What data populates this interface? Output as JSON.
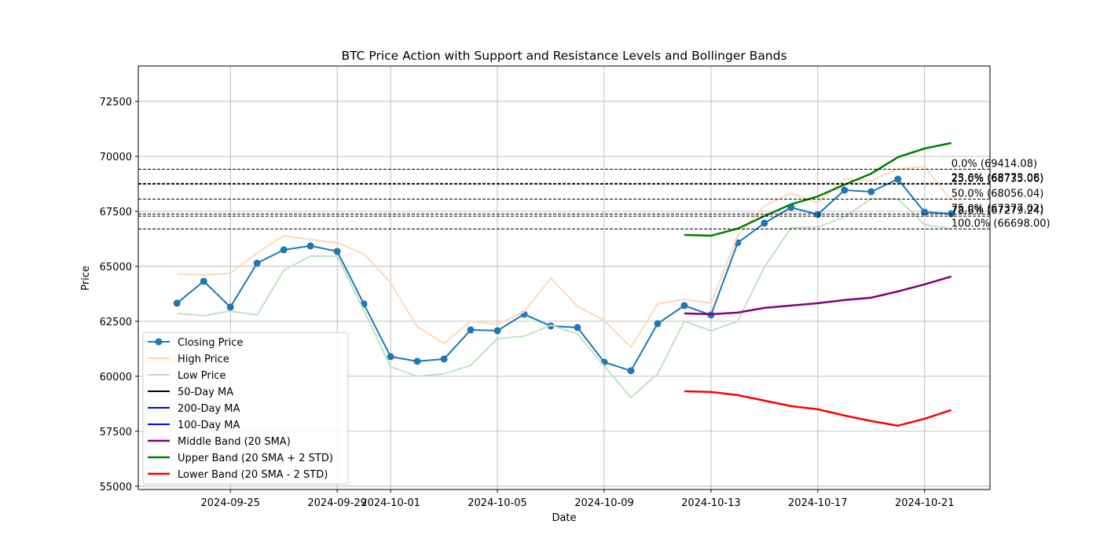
{
  "chart_data": {
    "type": "line",
    "title": "BTC Price Action with Support and Resistance Levels and Bollinger Bands",
    "xlabel": "Date",
    "ylabel": "Price",
    "x": [
      "2024-09-23",
      "2024-09-24",
      "2024-09-25",
      "2024-09-26",
      "2024-09-27",
      "2024-09-28",
      "2024-09-29",
      "2024-09-30",
      "2024-10-01",
      "2024-10-02",
      "2024-10-03",
      "2024-10-04",
      "2024-10-05",
      "2024-10-06",
      "2024-10-07",
      "2024-10-08",
      "2024-10-09",
      "2024-10-10",
      "2024-10-11",
      "2024-10-12",
      "2024-10-13",
      "2024-10-14",
      "2024-10-15",
      "2024-10-16",
      "2024-10-17",
      "2024-10-18",
      "2024-10-19",
      "2024-10-20",
      "2024-10-21",
      "2024-10-22"
    ],
    "series": [
      {
        "name": "Closing Price",
        "color": "#1f77b4",
        "marker": true,
        "width": 2,
        "values": [
          63321,
          64321,
          63143,
          65143,
          65750,
          65929,
          65679,
          63286,
          60893,
          60679,
          60786,
          62107,
          62071,
          62821,
          62286,
          62214,
          60643,
          60250,
          62393,
          63214,
          62786,
          66071,
          66964,
          67679,
          67357,
          68464,
          68393,
          68964,
          67464,
          67393
        ]
      },
      {
        "name": "High Price",
        "color": "#ffd9b7",
        "width": 2,
        "values": [
          64643,
          64607,
          64679,
          65607,
          66393,
          66214,
          66071,
          65571,
          64250,
          62250,
          61500,
          62500,
          62357,
          62929,
          64464,
          63179,
          62536,
          61321,
          63286,
          63500,
          63321,
          66393,
          67750,
          68321,
          67893,
          68964,
          68893,
          69429,
          69536,
          68000
        ]
      },
      {
        "name": "Low Price",
        "color": "#c0e3c0",
        "width": 2,
        "values": [
          62857,
          62750,
          62964,
          62786,
          64821,
          65464,
          65464,
          62998,
          60429,
          60000,
          60107,
          60500,
          61714,
          61821,
          62321,
          61929,
          60464,
          59036,
          60107,
          62500,
          62071,
          62500,
          64964,
          66750,
          66786,
          67250,
          68071,
          68071,
          66893,
          66714
        ]
      },
      {
        "name": "50-Day MA",
        "color": "#000000",
        "width": 2,
        "values": [
          null,
          null,
          null,
          null,
          null,
          null,
          null,
          null,
          null,
          null,
          null,
          null,
          null,
          null,
          null,
          null,
          null,
          null,
          null,
          null,
          null,
          null,
          null,
          null,
          null,
          null,
          null,
          null,
          null,
          null
        ]
      },
      {
        "name": "200-Day MA",
        "color": "#0000ff",
        "width": 2,
        "values": [
          null,
          null,
          null,
          null,
          null,
          null,
          null,
          null,
          null,
          null,
          null,
          null,
          null,
          null,
          null,
          null,
          null,
          null,
          null,
          null,
          null,
          null,
          null,
          null,
          null,
          null,
          null,
          null,
          null,
          null
        ]
      },
      {
        "name": "100-Day MA",
        "color": "#0000ff",
        "width": 2,
        "values": [
          null,
          null,
          null,
          null,
          null,
          null,
          null,
          null,
          null,
          null,
          null,
          null,
          null,
          null,
          null,
          null,
          null,
          null,
          null,
          null,
          null,
          null,
          null,
          null,
          null,
          null,
          null,
          null,
          null,
          null
        ]
      },
      {
        "name": "Middle Band (20 SMA)",
        "color": "#800080",
        "width": 2.5,
        "values": [
          null,
          null,
          null,
          null,
          null,
          null,
          null,
          null,
          null,
          null,
          null,
          null,
          null,
          null,
          null,
          null,
          null,
          null,
          null,
          62857,
          62821,
          62893,
          63107,
          63214,
          63321,
          63464,
          63571,
          63857,
          64179,
          64536
        ]
      },
      {
        "name": "Upper Band (20 SMA + 2 STD)",
        "color": "#008000",
        "width": 2.5,
        "values": [
          null,
          null,
          null,
          null,
          null,
          null,
          null,
          null,
          null,
          null,
          null,
          null,
          null,
          null,
          null,
          null,
          null,
          null,
          null,
          66429,
          66393,
          66714,
          67286,
          67821,
          68179,
          68714,
          69214,
          69964,
          70357,
          70607
        ]
      },
      {
        "name": "Lower Band (20 SMA - 2 STD)",
        "color": "#ff0000",
        "width": 2.5,
        "values": [
          null,
          null,
          null,
          null,
          null,
          null,
          null,
          null,
          null,
          null,
          null,
          null,
          null,
          null,
          null,
          null,
          null,
          null,
          null,
          59321,
          59286,
          59143,
          58893,
          58643,
          58500,
          58214,
          57964,
          57750,
          58071,
          58464
        ]
      }
    ],
    "levels": [
      {
        "value": 69414.08,
        "label": "0.0% (69414.08)"
      },
      {
        "value": 68773.08,
        "label": "23.6% (68773.08)"
      },
      {
        "value": 68735.06,
        "label": "25.0% (68735.06)"
      },
      {
        "value": 68056.04,
        "label": "50.0% (68056.04)"
      },
      {
        "value": 67377.02,
        "label": "75.0% (67377.02)"
      },
      {
        "value": 67279.24,
        "label": "78.6% (67279.24)"
      },
      {
        "value": 66698.0,
        "label": "100.0% (66698.00)"
      }
    ],
    "xlim": [
      "2024-09-21T13:12",
      "2024-10-23T10:48"
    ],
    "xticks": [
      "2024-09-25",
      "2024-09-29",
      "2024-10-01",
      "2024-10-05",
      "2024-10-09",
      "2024-10-13",
      "2024-10-17",
      "2024-10-21"
    ],
    "ylim": [
      54850,
      74110
    ],
    "yticks": [
      55000,
      57500,
      60000,
      62500,
      65000,
      67500,
      70000,
      72500
    ],
    "grid": true,
    "legend": "lower left"
  }
}
